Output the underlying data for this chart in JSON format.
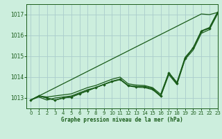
{
  "title": "Graphe pression niveau de la mer (hPa)",
  "bg_color": "#cceedd",
  "grid_color": "#aacccc",
  "line_color": "#1a5c1a",
  "xlim": [
    -0.5,
    23
  ],
  "ylim": [
    1012.5,
    1017.5
  ],
  "yticks": [
    1013,
    1014,
    1015,
    1016,
    1017
  ],
  "xticks": [
    0,
    1,
    2,
    3,
    4,
    5,
    6,
    7,
    8,
    9,
    10,
    11,
    12,
    13,
    14,
    15,
    16,
    17,
    18,
    19,
    20,
    21,
    22,
    23
  ],
  "series_no_marker": [
    [
      1012.9,
      1013.1,
      1013.0,
      1012.9,
      1013.0,
      1013.05,
      1013.2,
      1013.35,
      1013.5,
      1013.65,
      1013.8,
      1013.9,
      1013.6,
      1013.55,
      1013.55,
      1013.45,
      1013.1,
      1014.2,
      1013.7,
      1014.9,
      1015.4,
      1016.2,
      1016.35,
      1017.1
    ],
    [
      1012.9,
      1013.05,
      1012.9,
      1013.0,
      1013.05,
      1013.1,
      1013.25,
      1013.4,
      1013.5,
      1013.65,
      1013.78,
      1013.88,
      1013.58,
      1013.52,
      1013.5,
      1013.4,
      1013.08,
      1014.12,
      1013.65,
      1014.85,
      1015.3,
      1016.1,
      1016.28,
      1017.03
    ],
    [
      1012.9,
      1013.1,
      1013.05,
      1013.1,
      1013.15,
      1013.2,
      1013.35,
      1013.5,
      1013.6,
      1013.75,
      1013.9,
      1014.0,
      1013.68,
      1013.62,
      1013.6,
      1013.5,
      1013.18,
      1014.22,
      1013.75,
      1014.95,
      1015.4,
      1016.22,
      1016.38,
      1017.12
    ]
  ],
  "series_linear": [
    1012.9,
    1013.097,
    1013.293,
    1013.49,
    1013.687,
    1013.883,
    1014.08,
    1014.277,
    1014.473,
    1014.67,
    1014.867,
    1015.063,
    1015.26,
    1015.457,
    1015.653,
    1015.85,
    1016.047,
    1016.243,
    1016.44,
    1016.637,
    1016.833,
    1017.03,
    1017.0,
    1017.1
  ],
  "series_marker": [
    1012.9,
    1013.1,
    1013.0,
    1012.9,
    1013.0,
    1013.05,
    1013.2,
    1013.35,
    1013.5,
    1013.65,
    1013.8,
    1013.9,
    1013.6,
    1013.55,
    1013.55,
    1013.45,
    1013.1,
    1014.2,
    1013.7,
    1014.9,
    1015.4,
    1016.2,
    1016.35,
    1017.1
  ]
}
